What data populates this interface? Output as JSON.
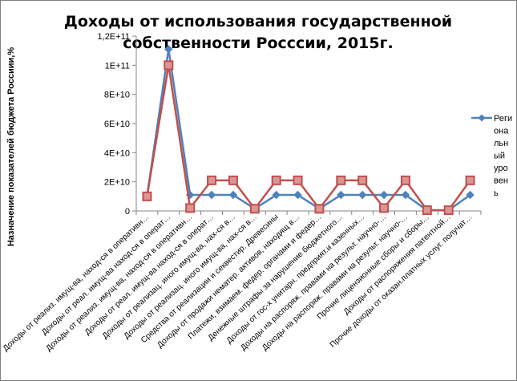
{
  "chart_data": {
    "type": "line",
    "title_lines": [
      "Доходы от использования государственной",
      "собственности Росссии, 2015г."
    ],
    "ylabel": "Назначение показателей бюджета Россиии,%",
    "xlabel": "",
    "ylim": [
      0,
      120000000000
    ],
    "yticks": [
      "0",
      "2E+10",
      "4E+10",
      "6E+10",
      "8E+10",
      "1E+11",
      "1,2E+11"
    ],
    "categories": [
      "Доходы от реализ. имущ-ва, наход-ся в оперативн…",
      "Доходы от реал. имущ-ва наход-ся в операт…",
      "Доходы от реализ. имущ-ва, наход-ся в оперативн…",
      "Доходы от реал. имущ-ва наход-ся в операт…",
      "Доходы от реализац. иного имущ-ва, нах-ся в…",
      "Доходы от реализац. иного имущ-ва, нах-ся в…",
      "Средства от реализации и секвестир. Древесины",
      "Доходы от продажи нематер. активов, находящ в…",
      "Платежи, взимаем. федер. органами и федер…",
      "Денежные штрафы за нарушение бюджетного…",
      "Доходы от гос-х унитарн. предприят.и казенных…",
      "Доходы на распоряж. правами на результ. научно-…",
      "Доходы на распоряж. правами на результ. научно-…",
      "Прочие лицензионные сборы и сборы…",
      "Доходы от распоряжения патентной…",
      "Прочие доходы от оказан.платных услуг. получат…"
    ],
    "series": [
      {
        "name": "Региональный уровень",
        "color": "#4F81BD",
        "marker": "diamond",
        "values": [
          10000000000,
          111000000000,
          11000000000,
          11000000000,
          11000000000,
          1500000000,
          11000000000,
          11000000000,
          1500000000,
          11000000000,
          11000000000,
          11000000000,
          11000000000,
          500000000,
          500000000,
          11000000000
        ]
      },
      {
        "name": "",
        "color": "#C0504D",
        "marker": "square",
        "values": [
          10000000000,
          100000000000,
          2000000000,
          21000000000,
          21000000000,
          1500000000,
          21000000000,
          21000000000,
          1500000000,
          21000000000,
          21000000000,
          2000000000,
          21000000000,
          500000000,
          500000000,
          21000000000
        ]
      }
    ],
    "legend": {
      "position": "right",
      "lines": [
        "Реги",
        "она",
        "льн",
        "ый",
        "уро",
        "вен",
        "ь"
      ]
    },
    "grid": false
  }
}
